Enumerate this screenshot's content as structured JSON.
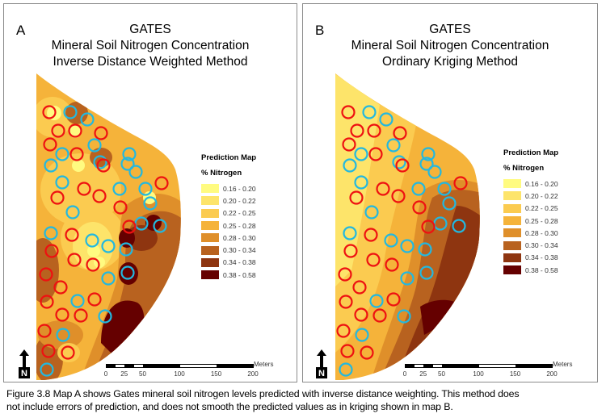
{
  "panels": [
    {
      "id": "A",
      "letter": "A",
      "title": "GATES",
      "subtitle": "Mineral Soil Nitrogen Concentration",
      "method": "Inverse Distance Weighted Method"
    },
    {
      "id": "B",
      "letter": "B",
      "title": "GATES",
      "subtitle": "Mineral Soil Nitrogen Concentration",
      "method": "Ordinary Kriging Method"
    }
  ],
  "legend": {
    "title": "Prediction Map",
    "subtitle": "% Nitrogen",
    "classes": [
      {
        "label": "0.16 - 0.20",
        "color": "#fffb80"
      },
      {
        "label": "0.20 - 0.22",
        "color": "#fde46a"
      },
      {
        "label": "0.22 - 0.25",
        "color": "#fbcb50"
      },
      {
        "label": "0.25 - 0.28",
        "color": "#f5b33a"
      },
      {
        "label": "0.28 - 0.30",
        "color": "#df8f2a"
      },
      {
        "label": "0.30 - 0.34",
        "color": "#b8621f"
      },
      {
        "label": "0.34 - 0.38",
        "color": "#8e3510"
      },
      {
        "label": "0.38 - 0.58",
        "color": "#650000"
      }
    ]
  },
  "scale_bar": {
    "units": "Meters",
    "ticks": [
      "0",
      "25",
      "50",
      "100",
      "150",
      "200"
    ],
    "tick_values": [
      0,
      25,
      50,
      100,
      150,
      200
    ]
  },
  "north_arrow": {
    "label": "N"
  },
  "markers": {
    "red_color": "#ee1111",
    "blue_color": "#22b8e0"
  },
  "caption": {
    "line1": "Figure 3.8  Map A shows Gates mineral soil nitrogen levels predicted with inverse distance weighting.  This method does",
    "line2": "not include errors of prediction,  and does not smooth the predicted values as in kriging shown in map B."
  }
}
